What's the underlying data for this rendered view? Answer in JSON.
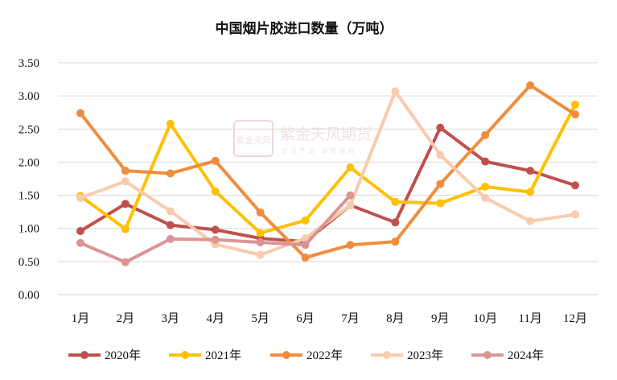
{
  "chart_data": {
    "type": "line",
    "title": "中国烟片胶进口数量（万吨）",
    "xlabel": "",
    "ylabel": "",
    "categories": [
      "1月",
      "2月",
      "3月",
      "4月",
      "5月",
      "6月",
      "7月",
      "8月",
      "9月",
      "10月",
      "11月",
      "12月"
    ],
    "ylim": [
      0,
      3.5
    ],
    "yticks": [
      "0.00",
      "0.50",
      "1.00",
      "1.50",
      "2.00",
      "2.50",
      "3.00",
      "3.50"
    ],
    "grid": "horizontal",
    "legend_position": "bottom",
    "series": [
      {
        "name": "2020年",
        "color": "#c0504d",
        "values": [
          0.96,
          1.37,
          1.05,
          0.98,
          0.85,
          0.8,
          1.35,
          1.09,
          2.52,
          2.01,
          1.87,
          1.65
        ]
      },
      {
        "name": "2021年",
        "color": "#ffc000",
        "values": [
          1.49,
          0.99,
          2.58,
          1.56,
          0.93,
          1.12,
          1.92,
          1.4,
          1.38,
          1.63,
          1.55,
          2.87
        ]
      },
      {
        "name": "2022年",
        "color": "#f28c3c",
        "values": [
          2.74,
          1.87,
          1.83,
          2.02,
          1.24,
          0.56,
          0.75,
          0.8,
          1.67,
          2.41,
          3.16,
          2.72
        ]
      },
      {
        "name": "2023年",
        "color": "#f8cbad",
        "values": [
          1.46,
          1.71,
          1.26,
          0.76,
          0.6,
          0.85,
          1.35,
          3.07,
          2.11,
          1.46,
          1.11,
          1.21
        ]
      },
      {
        "name": "2024年",
        "color": "#d99594",
        "values": [
          0.78,
          0.49,
          0.84,
          0.83,
          0.79,
          0.75,
          1.5,
          null,
          null,
          null,
          null,
          null
        ]
      }
    ]
  },
  "watermark": {
    "seal_text": "紫金天风",
    "name": "紫金天风期货",
    "slogan": "立足产业 研究驱动"
  }
}
